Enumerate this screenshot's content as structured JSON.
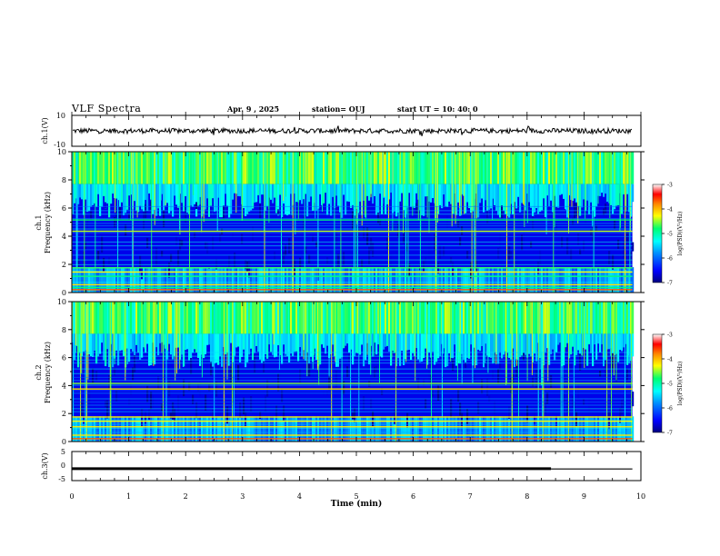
{
  "header": {
    "title": "VLF Spectra",
    "date": "Apr. 9 , 2025",
    "station": "station= OUJ",
    "start_ut": "start UT = 10: 40: 0"
  },
  "chart_data": [
    {
      "type": "line",
      "panel": "ch1-waveform",
      "ylabel": "ch.1(V)",
      "ylim": [
        -10,
        10
      ],
      "y_ticks": [
        "10",
        "-10"
      ],
      "x_range_min": [
        0,
        9.85
      ],
      "description_values": "continuous noise waveform approx. ±1.5 V with spikes to ±3 V",
      "color": "#000000"
    },
    {
      "type": "heatmap",
      "panel": "ch1-spectrogram",
      "ylabel": "ch.1\nFrequency (kHz)",
      "ylim": [
        0,
        10
      ],
      "y_ticks": [
        "0",
        "2",
        "4",
        "6",
        "8",
        "10"
      ],
      "x_range_min": [
        0,
        9.85
      ],
      "colorbar": {
        "label": "log(PSD)(V²/Hz)",
        "range": [
          -7,
          -3
        ],
        "ticks": [
          "-3",
          "-4",
          "-5",
          "-6",
          "-7"
        ]
      },
      "features": {
        "high_band_khz": [
          6.5,
          10
        ],
        "strong_lines_khz": [
          0.4,
          0.6,
          1.2,
          1.5,
          1.8,
          4.4,
          5.2
        ]
      }
    },
    {
      "type": "heatmap",
      "panel": "ch2-spectrogram",
      "ylabel": "ch.2\nFrequency (kHz)",
      "ylim": [
        0,
        10
      ],
      "y_ticks": [
        "0",
        "2",
        "4",
        "6",
        "8",
        "10"
      ],
      "x_range_min": [
        0,
        9.85
      ],
      "colorbar": {
        "label": "log(PSD)(V²/Hz)",
        "range": [
          -7,
          -3
        ],
        "ticks": [
          "-3",
          "-4",
          "-5",
          "-6",
          "-7"
        ]
      },
      "features": {
        "high_band_khz": [
          6.5,
          10
        ],
        "strong_lines_khz": [
          0.5,
          1.1,
          1.5,
          1.8,
          3.8,
          4.2
        ]
      }
    },
    {
      "type": "line",
      "panel": "ch3-waveform",
      "ylabel": "ch.3(V)",
      "ylim": [
        -5,
        5
      ],
      "y_ticks": [
        "5",
        "0",
        "-5"
      ],
      "segments": [
        {
          "x": [
            0,
            8.42
          ],
          "y": -0.9,
          "thick": true
        },
        {
          "x": [
            8.42,
            9.85
          ],
          "y": -1.0,
          "thick": false
        }
      ],
      "color": "#000000"
    }
  ],
  "xaxis": {
    "label": "Time (min)",
    "range": [
      0,
      10
    ],
    "ticks": [
      "0",
      "1",
      "2",
      "3",
      "4",
      "5",
      "6",
      "7",
      "8",
      "9",
      "10"
    ]
  },
  "colors": {
    "colormap": [
      "#00008a",
      "#0000ff",
      "#0090ff",
      "#00ffff",
      "#00ff70",
      "#ffff00",
      "#ff8800",
      "#ff0000",
      "#ffffff"
    ]
  }
}
